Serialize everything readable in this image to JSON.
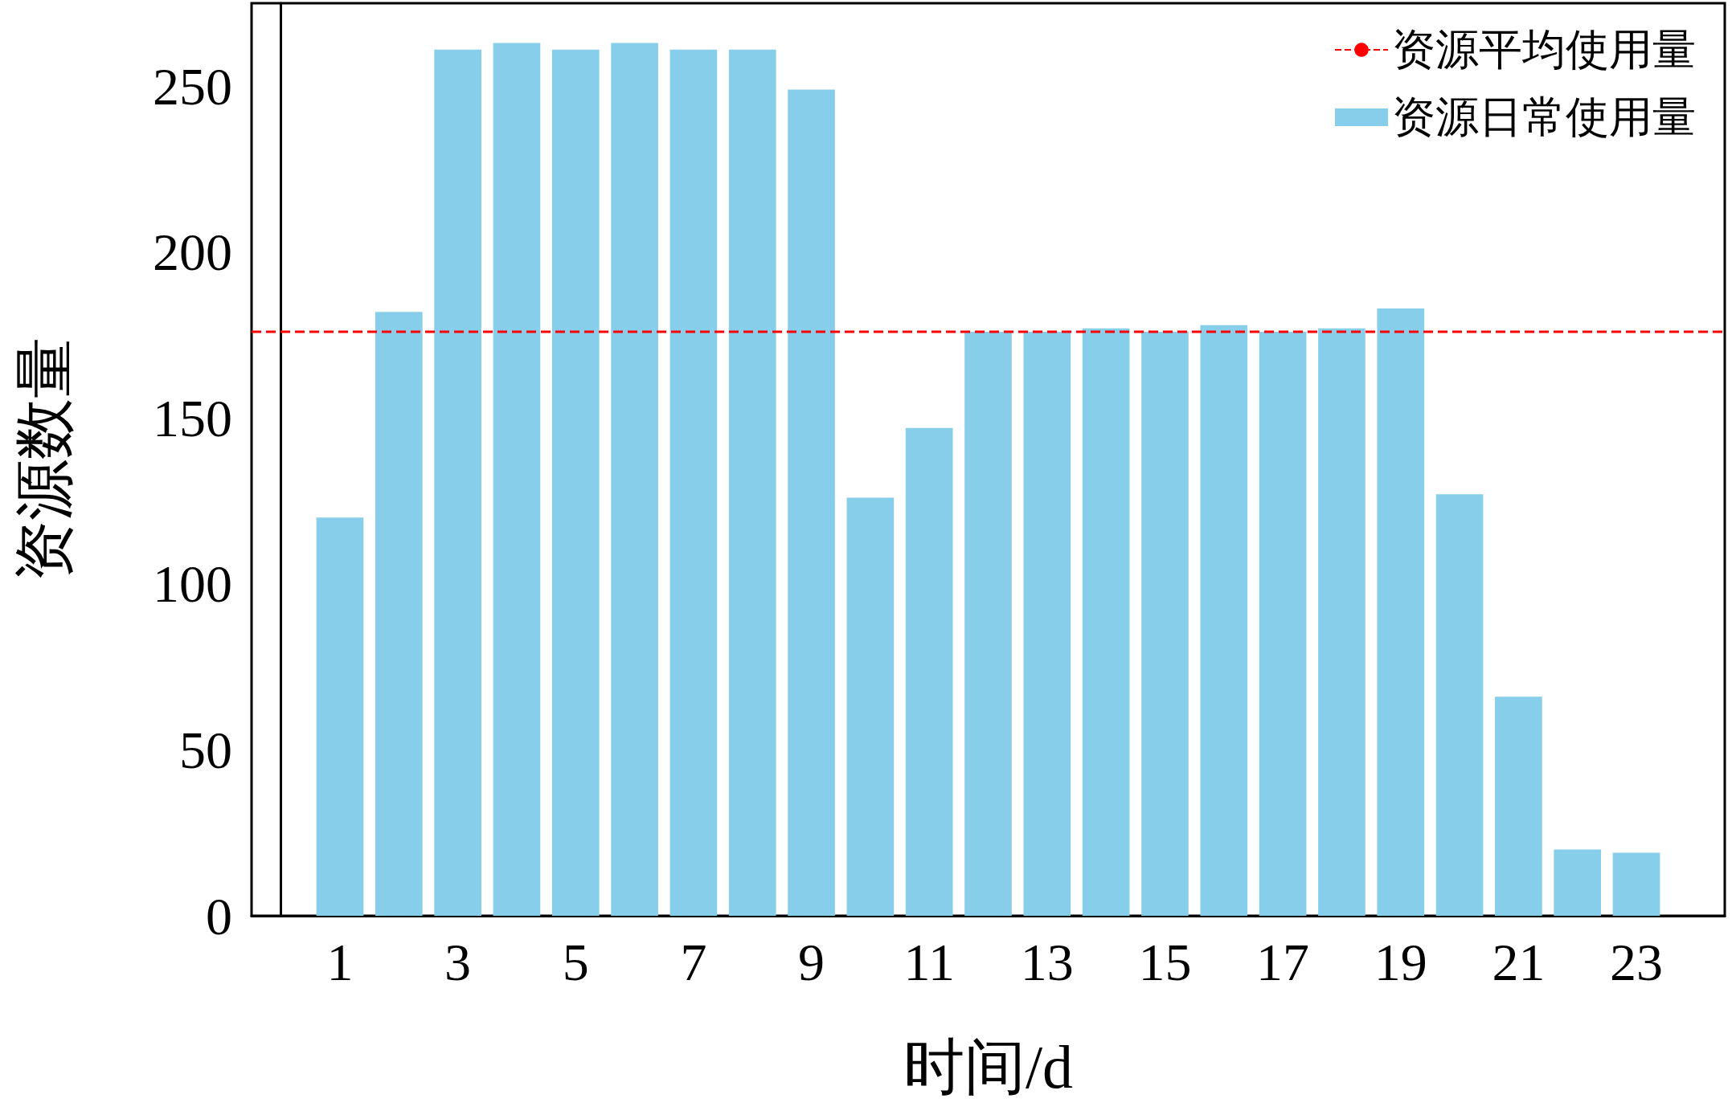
{
  "chart_data": {
    "type": "bar",
    "xlabel": "时间/d",
    "ylabel": "资源数量",
    "x": [
      1,
      2,
      3,
      4,
      5,
      6,
      7,
      8,
      9,
      10,
      11,
      12,
      13,
      14,
      15,
      16,
      17,
      18,
      19,
      20,
      21,
      22,
      23
    ],
    "series": [
      {
        "name": "资源日常使用量",
        "color": "#87ceeb",
        "values": [
          120,
          182,
          261,
          263,
          261,
          263,
          261,
          261,
          249,
          126,
          147,
          176,
          176,
          177,
          176,
          178,
          176,
          177,
          183,
          127,
          66,
          20,
          19
        ]
      }
    ],
    "ref_lines": [
      {
        "axis": "y",
        "value": 176,
        "label": "资源平均使用量",
        "color": "#ff0000",
        "line_style": "dashed"
      }
    ],
    "xlim": [
      -0.5,
      24.5
    ],
    "xticks": [
      1,
      3,
      5,
      7,
      9,
      11,
      13,
      15,
      17,
      19,
      21,
      23
    ],
    "ylim": [
      0,
      275
    ],
    "yticks": [
      0,
      50,
      100,
      150,
      200,
      250
    ],
    "grid": false,
    "legend": "top right"
  }
}
